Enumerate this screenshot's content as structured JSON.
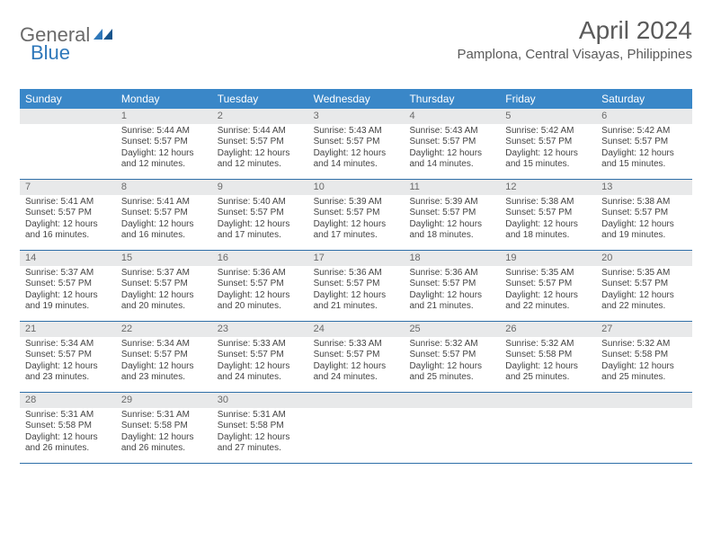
{
  "logo": {
    "general": "General",
    "blue": "Blue"
  },
  "title": "April 2024",
  "location": "Pamplona, Central Visayas, Philippines",
  "colors": {
    "header_bg": "#3a87c8",
    "header_text": "#ffffff",
    "daynum_bg": "#e8e9ea",
    "daynum_text": "#6a6a6a",
    "border": "#2f6fa8",
    "body_text": "#444444",
    "title_text": "#5a5a5a",
    "logo_gray": "#6a6a6a",
    "logo_blue": "#2f78ba"
  },
  "day_headers": [
    "Sunday",
    "Monday",
    "Tuesday",
    "Wednesday",
    "Thursday",
    "Friday",
    "Saturday"
  ],
  "weeks": [
    [
      {
        "empty": true
      },
      {
        "day": "1",
        "sunrise": "Sunrise: 5:44 AM",
        "sunset": "Sunset: 5:57 PM",
        "daylight": "Daylight: 12 hours and 12 minutes."
      },
      {
        "day": "2",
        "sunrise": "Sunrise: 5:44 AM",
        "sunset": "Sunset: 5:57 PM",
        "daylight": "Daylight: 12 hours and 12 minutes."
      },
      {
        "day": "3",
        "sunrise": "Sunrise: 5:43 AM",
        "sunset": "Sunset: 5:57 PM",
        "daylight": "Daylight: 12 hours and 14 minutes."
      },
      {
        "day": "4",
        "sunrise": "Sunrise: 5:43 AM",
        "sunset": "Sunset: 5:57 PM",
        "daylight": "Daylight: 12 hours and 14 minutes."
      },
      {
        "day": "5",
        "sunrise": "Sunrise: 5:42 AM",
        "sunset": "Sunset: 5:57 PM",
        "daylight": "Daylight: 12 hours and 15 minutes."
      },
      {
        "day": "6",
        "sunrise": "Sunrise: 5:42 AM",
        "sunset": "Sunset: 5:57 PM",
        "daylight": "Daylight: 12 hours and 15 minutes."
      }
    ],
    [
      {
        "day": "7",
        "sunrise": "Sunrise: 5:41 AM",
        "sunset": "Sunset: 5:57 PM",
        "daylight": "Daylight: 12 hours and 16 minutes."
      },
      {
        "day": "8",
        "sunrise": "Sunrise: 5:41 AM",
        "sunset": "Sunset: 5:57 PM",
        "daylight": "Daylight: 12 hours and 16 minutes."
      },
      {
        "day": "9",
        "sunrise": "Sunrise: 5:40 AM",
        "sunset": "Sunset: 5:57 PM",
        "daylight": "Daylight: 12 hours and 17 minutes."
      },
      {
        "day": "10",
        "sunrise": "Sunrise: 5:39 AM",
        "sunset": "Sunset: 5:57 PM",
        "daylight": "Daylight: 12 hours and 17 minutes."
      },
      {
        "day": "11",
        "sunrise": "Sunrise: 5:39 AM",
        "sunset": "Sunset: 5:57 PM",
        "daylight": "Daylight: 12 hours and 18 minutes."
      },
      {
        "day": "12",
        "sunrise": "Sunrise: 5:38 AM",
        "sunset": "Sunset: 5:57 PM",
        "daylight": "Daylight: 12 hours and 18 minutes."
      },
      {
        "day": "13",
        "sunrise": "Sunrise: 5:38 AM",
        "sunset": "Sunset: 5:57 PM",
        "daylight": "Daylight: 12 hours and 19 minutes."
      }
    ],
    [
      {
        "day": "14",
        "sunrise": "Sunrise: 5:37 AM",
        "sunset": "Sunset: 5:57 PM",
        "daylight": "Daylight: 12 hours and 19 minutes."
      },
      {
        "day": "15",
        "sunrise": "Sunrise: 5:37 AM",
        "sunset": "Sunset: 5:57 PM",
        "daylight": "Daylight: 12 hours and 20 minutes."
      },
      {
        "day": "16",
        "sunrise": "Sunrise: 5:36 AM",
        "sunset": "Sunset: 5:57 PM",
        "daylight": "Daylight: 12 hours and 20 minutes."
      },
      {
        "day": "17",
        "sunrise": "Sunrise: 5:36 AM",
        "sunset": "Sunset: 5:57 PM",
        "daylight": "Daylight: 12 hours and 21 minutes."
      },
      {
        "day": "18",
        "sunrise": "Sunrise: 5:36 AM",
        "sunset": "Sunset: 5:57 PM",
        "daylight": "Daylight: 12 hours and 21 minutes."
      },
      {
        "day": "19",
        "sunrise": "Sunrise: 5:35 AM",
        "sunset": "Sunset: 5:57 PM",
        "daylight": "Daylight: 12 hours and 22 minutes."
      },
      {
        "day": "20",
        "sunrise": "Sunrise: 5:35 AM",
        "sunset": "Sunset: 5:57 PM",
        "daylight": "Daylight: 12 hours and 22 minutes."
      }
    ],
    [
      {
        "day": "21",
        "sunrise": "Sunrise: 5:34 AM",
        "sunset": "Sunset: 5:57 PM",
        "daylight": "Daylight: 12 hours and 23 minutes."
      },
      {
        "day": "22",
        "sunrise": "Sunrise: 5:34 AM",
        "sunset": "Sunset: 5:57 PM",
        "daylight": "Daylight: 12 hours and 23 minutes."
      },
      {
        "day": "23",
        "sunrise": "Sunrise: 5:33 AM",
        "sunset": "Sunset: 5:57 PM",
        "daylight": "Daylight: 12 hours and 24 minutes."
      },
      {
        "day": "24",
        "sunrise": "Sunrise: 5:33 AM",
        "sunset": "Sunset: 5:57 PM",
        "daylight": "Daylight: 12 hours and 24 minutes."
      },
      {
        "day": "25",
        "sunrise": "Sunrise: 5:32 AM",
        "sunset": "Sunset: 5:57 PM",
        "daylight": "Daylight: 12 hours and 25 minutes."
      },
      {
        "day": "26",
        "sunrise": "Sunrise: 5:32 AM",
        "sunset": "Sunset: 5:58 PM",
        "daylight": "Daylight: 12 hours and 25 minutes."
      },
      {
        "day": "27",
        "sunrise": "Sunrise: 5:32 AM",
        "sunset": "Sunset: 5:58 PM",
        "daylight": "Daylight: 12 hours and 25 minutes."
      }
    ],
    [
      {
        "day": "28",
        "sunrise": "Sunrise: 5:31 AM",
        "sunset": "Sunset: 5:58 PM",
        "daylight": "Daylight: 12 hours and 26 minutes."
      },
      {
        "day": "29",
        "sunrise": "Sunrise: 5:31 AM",
        "sunset": "Sunset: 5:58 PM",
        "daylight": "Daylight: 12 hours and 26 minutes."
      },
      {
        "day": "30",
        "sunrise": "Sunrise: 5:31 AM",
        "sunset": "Sunset: 5:58 PM",
        "daylight": "Daylight: 12 hours and 27 minutes."
      },
      {
        "empty": true
      },
      {
        "empty": true
      },
      {
        "empty": true
      },
      {
        "empty": true
      }
    ]
  ]
}
